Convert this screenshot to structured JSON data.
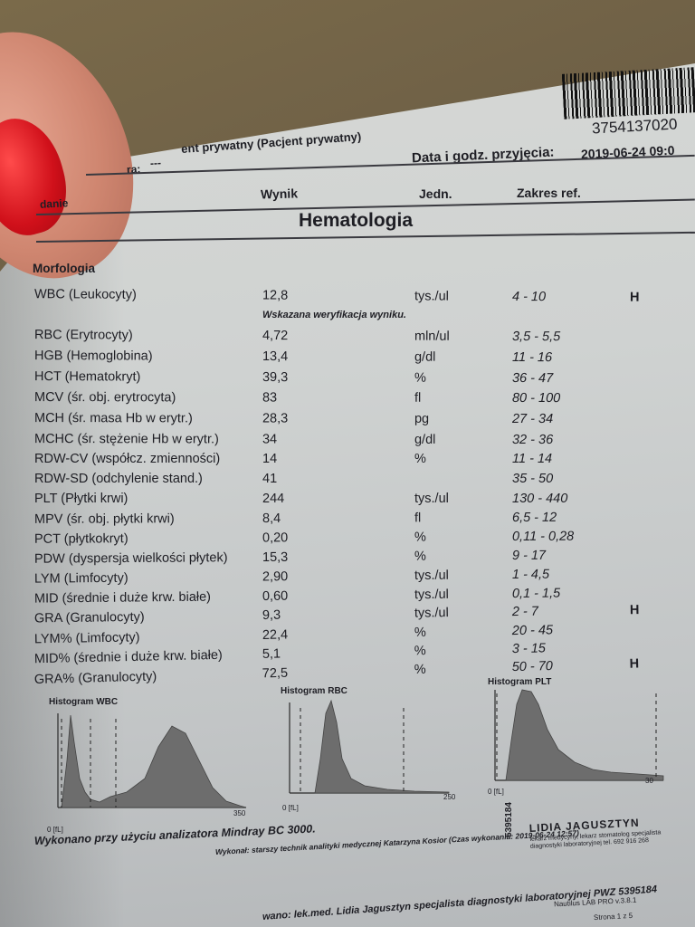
{
  "header": {
    "patient_partial": "ent prywatny (Pacjent prywatny)",
    "dash": "---",
    "label_partial": "ra:",
    "admission_label": "Data i godz. przyjęcia:",
    "admission_value": "2019-06-24 09:0",
    "barcode_number": "3754137020"
  },
  "columns": {
    "exam": "danie",
    "result": "Wynik",
    "unit": "Jedn.",
    "range": "Zakres ref."
  },
  "section_title": "Hematologia",
  "subsection_title": "Morfologia",
  "wbc_note": "Wskazana weryfikacja wyniku.",
  "results": [
    {
      "name": "WBC (Leukocyty)",
      "value": "12,8",
      "unit": "tys./ul",
      "range": "4 - 10",
      "flag": "H"
    },
    {
      "name": "RBC (Erytrocyty)",
      "value": "4,72",
      "unit": "mln/ul",
      "range": "3,5 - 5,5",
      "flag": ""
    },
    {
      "name": "HGB (Hemoglobina)",
      "value": "13,4",
      "unit": "g/dl",
      "range": "11 - 16",
      "flag": ""
    },
    {
      "name": "HCT (Hematokryt)",
      "value": "39,3",
      "unit": "%",
      "range": "36 - 47",
      "flag": ""
    },
    {
      "name": "MCV (śr. obj. erytrocyta)",
      "value": "83",
      "unit": "fl",
      "range": "80 - 100",
      "flag": ""
    },
    {
      "name": "MCH (śr. masa Hb w erytr.)",
      "value": "28,3",
      "unit": "pg",
      "range": "27 - 34",
      "flag": ""
    },
    {
      "name": "MCHC (śr. stężenie Hb w erytr.)",
      "value": "34",
      "unit": "g/dl",
      "range": "32 - 36",
      "flag": ""
    },
    {
      "name": "RDW-CV (współcz. zmienności)",
      "value": "14",
      "unit": "%",
      "range": "11 - 14",
      "flag": ""
    },
    {
      "name": "RDW-SD (odchylenie stand.)",
      "value": "41",
      "unit": "",
      "range": "35 - 50",
      "flag": ""
    },
    {
      "name": "PLT (Płytki krwi)",
      "value": "244",
      "unit": "tys./ul",
      "range": "130 - 440",
      "flag": ""
    },
    {
      "name": "MPV (śr. obj. płytki krwi)",
      "value": "8,4",
      "unit": "fl",
      "range": "6,5 - 12",
      "flag": ""
    },
    {
      "name": "PCT (płytkokryt)",
      "value": "0,20",
      "unit": "%",
      "range": "0,11 - 0,28",
      "flag": ""
    },
    {
      "name": "PDW (dyspersja wielkości płytek)",
      "value": "15,3",
      "unit": "%",
      "range": "9 - 17",
      "flag": ""
    },
    {
      "name": "LYM (Limfocyty)",
      "value": "2,90",
      "unit": "tys./ul",
      "range": "1 - 4,5",
      "flag": ""
    },
    {
      "name": "MID (średnie i duże krw. białe)",
      "value": "0,60",
      "unit": "tys./ul",
      "range": "0,1 - 1,5",
      "flag": ""
    },
    {
      "name": "GRA (Granulocyty)",
      "value": "9,3",
      "unit": "tys./ul",
      "range": "2 - 7",
      "flag": "H"
    },
    {
      "name": "LYM% (Limfocyty)",
      "value": "22,4",
      "unit": "%",
      "range": "20 - 45",
      "flag": ""
    },
    {
      "name": "MID% (średnie i duże krw. białe)",
      "value": "5,1",
      "unit": "%",
      "range": "3 - 15",
      "flag": ""
    },
    {
      "name": "GRA% (Granulocyty)",
      "value": "72,5",
      "unit": "%",
      "range": "50 - 70",
      "flag": "H"
    }
  ],
  "histograms": [
    {
      "title": "Histogram WBC",
      "axis_start": "0 [fL]",
      "axis_end": "350"
    },
    {
      "title": "Histogram RBC",
      "axis_start": "0 [fL]",
      "axis_end": "250"
    },
    {
      "title": "Histogram PLT",
      "axis_start": "0 [fL]",
      "axis_end": "30"
    }
  ],
  "footer": {
    "analyzer": "Wykonano przy użyciu analizatora Mindray BC 3000.",
    "performed_by": "Wykonał: starszy technik analityki medycznej Katarzyna Kosior (Czas wykonania: 2019-06-24 12:57)",
    "authorized": "wano: lek.med. Lidia Jagusztyn specjalista diagnostyki laboratoryjnej PWZ 5395184",
    "software": "Nautilus LAB PRO v.3.8.1",
    "page": "Strona 1 z 5",
    "stamp_name": "LIDIA JAGUSZTYN",
    "stamp_text": "lekarz medycyny, lekarz stomatolog specjalista diagnostyki laboratoryjnej tel. 692 916 268",
    "stamp_number": "5395184"
  }
}
